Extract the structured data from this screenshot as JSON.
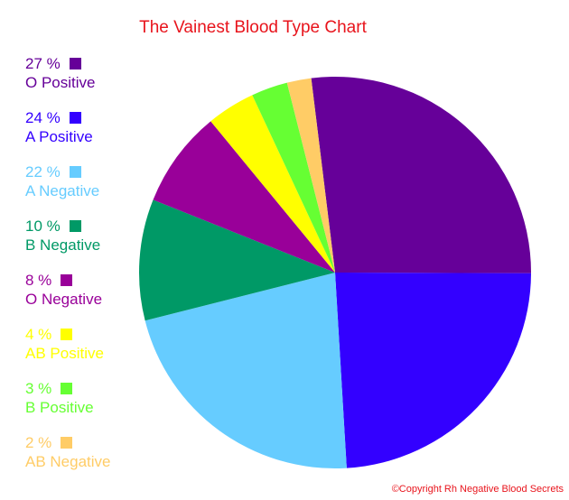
{
  "title": "The Vainest Blood Type Chart",
  "copyright": "©Copyright Rh Negative Blood Secrets",
  "chart_data": {
    "type": "pie",
    "title": "The Vainest Blood Type Chart",
    "legend_position": "left",
    "slices": [
      {
        "label": "O Positive",
        "value": 27,
        "value_label": "27 %",
        "color": "#660099"
      },
      {
        "label": "A Positive",
        "value": 24,
        "value_label": "24 %",
        "color": "#3300ff"
      },
      {
        "label": "A Negative",
        "value": 22,
        "value_label": "22 %",
        "color": "#66ccff"
      },
      {
        "label": "B Negative",
        "value": 10,
        "value_label": "10 %",
        "color": "#009966"
      },
      {
        "label": "O Negative",
        "value": 8,
        "value_label": "8 %",
        "color": "#990099"
      },
      {
        "label": "AB Positive",
        "value": 4,
        "value_label": "4 %",
        "color": "#ffff00"
      },
      {
        "label": "B Positive",
        "value": 3,
        "value_label": "3 %",
        "color": "#66ff33"
      },
      {
        "label": "AB Negative",
        "value": 2,
        "value_label": "2 %",
        "color": "#ffcc66"
      }
    ]
  }
}
